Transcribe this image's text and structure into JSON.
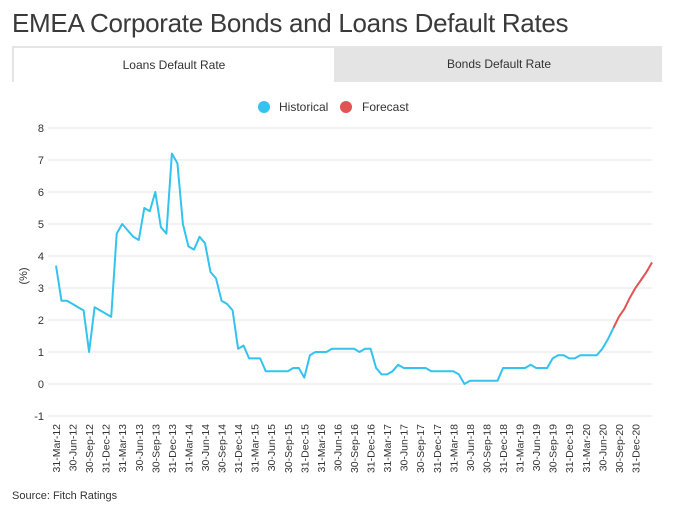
{
  "title": "EMEA Corporate Bonds and Loans Default Rates",
  "tabs": [
    {
      "label": "Loans Default Rate"
    },
    {
      "label": "Bonds Default Rate"
    }
  ],
  "source": "Source: Fitch Ratings",
  "colors": {
    "historical": "#33c3ee",
    "forecast": "#e05454",
    "grid": "#e6e6e6"
  },
  "chart_data": {
    "type": "line",
    "ylabel": "(%)",
    "ylim": [
      -1,
      8
    ],
    "yticks": [
      -1,
      0,
      1,
      2,
      3,
      4,
      5,
      6,
      7,
      8
    ],
    "grid": true,
    "legend": "top-center",
    "x_tick_labels": [
      "31-Mar-12",
      "30-Jun-12",
      "30-Sep-12",
      "31-Dec-12",
      "31-Mar-13",
      "30-Jun-13",
      "30-Sep-13",
      "31-Dec-13",
      "31-Mar-14",
      "30-Jun-14",
      "30-Sep-14",
      "31-Dec-14",
      "31-Mar-15",
      "30-Jun-15",
      "30-Sep-15",
      "31-Dec-15",
      "31-Mar-16",
      "30-Jun-16",
      "30-Sep-16",
      "31-Dec-16",
      "31-Mar-17",
      "30-Jun-17",
      "30-Sep-17",
      "31-Dec-17",
      "31-Mar-18",
      "30-Jun-18",
      "30-Sep-18",
      "31-Dec-18",
      "31-Mar-19",
      "30-Jun-19",
      "30-Sep-19",
      "31-Dec-19",
      "31-Mar-20",
      "30-Jun-20",
      "30-Sep-20",
      "31-Dec-20"
    ],
    "series": [
      {
        "name": "Historical",
        "points": [
          [
            "31-Mar-12",
            3.7
          ],
          [
            "30-Apr-12",
            2.6
          ],
          [
            "31-May-12",
            2.6
          ],
          [
            "30-Jun-12",
            2.5
          ],
          [
            "31-Jul-12",
            2.4
          ],
          [
            "31-Aug-12",
            2.3
          ],
          [
            "30-Sep-12",
            1.0
          ],
          [
            "31-Oct-12",
            2.4
          ],
          [
            "30-Nov-12",
            2.3
          ],
          [
            "31-Dec-12",
            2.2
          ],
          [
            "31-Jan-13",
            2.1
          ],
          [
            "28-Feb-13",
            4.7
          ],
          [
            "31-Mar-13",
            5.0
          ],
          [
            "30-Apr-13",
            4.8
          ],
          [
            "31-May-13",
            4.6
          ],
          [
            "30-Jun-13",
            4.5
          ],
          [
            "31-Jul-13",
            5.5
          ],
          [
            "31-Aug-13",
            5.4
          ],
          [
            "30-Sep-13",
            6.0
          ],
          [
            "31-Oct-13",
            4.9
          ],
          [
            "30-Nov-13",
            4.7
          ],
          [
            "31-Dec-13",
            7.2
          ],
          [
            "31-Jan-14",
            6.9
          ],
          [
            "28-Feb-14",
            5.0
          ],
          [
            "31-Mar-14",
            4.3
          ],
          [
            "30-Apr-14",
            4.2
          ],
          [
            "31-May-14",
            4.6
          ],
          [
            "30-Jun-14",
            4.4
          ],
          [
            "31-Jul-14",
            3.5
          ],
          [
            "31-Aug-14",
            3.3
          ],
          [
            "30-Sep-14",
            2.6
          ],
          [
            "31-Oct-14",
            2.5
          ],
          [
            "30-Nov-14",
            2.3
          ],
          [
            "31-Dec-14",
            1.1
          ],
          [
            "31-Jan-15",
            1.2
          ],
          [
            "28-Feb-15",
            0.8
          ],
          [
            "31-Mar-15",
            0.8
          ],
          [
            "30-Apr-15",
            0.8
          ],
          [
            "31-May-15",
            0.4
          ],
          [
            "30-Jun-15",
            0.4
          ],
          [
            "31-Jul-15",
            0.4
          ],
          [
            "31-Aug-15",
            0.4
          ],
          [
            "30-Sep-15",
            0.4
          ],
          [
            "31-Oct-15",
            0.5
          ],
          [
            "30-Nov-15",
            0.5
          ],
          [
            "31-Dec-15",
            0.2
          ],
          [
            "31-Jan-16",
            0.9
          ],
          [
            "29-Feb-16",
            1.0
          ],
          [
            "31-Mar-16",
            1.0
          ],
          [
            "30-Apr-16",
            1.0
          ],
          [
            "31-May-16",
            1.1
          ],
          [
            "30-Jun-16",
            1.1
          ],
          [
            "31-Jul-16",
            1.1
          ],
          [
            "31-Aug-16",
            1.1
          ],
          [
            "30-Sep-16",
            1.1
          ],
          [
            "31-Oct-16",
            1.0
          ],
          [
            "30-Nov-16",
            1.1
          ],
          [
            "31-Dec-16",
            1.1
          ],
          [
            "31-Jan-17",
            0.5
          ],
          [
            "28-Feb-17",
            0.3
          ],
          [
            "31-Mar-17",
            0.3
          ],
          [
            "30-Apr-17",
            0.4
          ],
          [
            "31-May-17",
            0.6
          ],
          [
            "30-Jun-17",
            0.5
          ],
          [
            "31-Jul-17",
            0.5
          ],
          [
            "31-Aug-17",
            0.5
          ],
          [
            "30-Sep-17",
            0.5
          ],
          [
            "31-Oct-17",
            0.5
          ],
          [
            "30-Nov-17",
            0.4
          ],
          [
            "31-Dec-17",
            0.4
          ],
          [
            "31-Jan-18",
            0.4
          ],
          [
            "28-Feb-18",
            0.4
          ],
          [
            "31-Mar-18",
            0.4
          ],
          [
            "30-Apr-18",
            0.3
          ],
          [
            "31-May-18",
            0.0
          ],
          [
            "30-Jun-18",
            0.1
          ],
          [
            "31-Jul-18",
            0.1
          ],
          [
            "31-Aug-18",
            0.1
          ],
          [
            "30-Sep-18",
            0.1
          ],
          [
            "31-Oct-18",
            0.1
          ],
          [
            "30-Nov-18",
            0.1
          ],
          [
            "31-Dec-18",
            0.5
          ],
          [
            "31-Jan-19",
            0.5
          ],
          [
            "28-Feb-19",
            0.5
          ],
          [
            "31-Mar-19",
            0.5
          ],
          [
            "30-Apr-19",
            0.5
          ],
          [
            "31-May-19",
            0.6
          ],
          [
            "30-Jun-19",
            0.5
          ],
          [
            "31-Jul-19",
            0.5
          ],
          [
            "31-Aug-19",
            0.5
          ],
          [
            "30-Sep-19",
            0.8
          ],
          [
            "31-Oct-19",
            0.9
          ],
          [
            "30-Nov-19",
            0.9
          ],
          [
            "31-Dec-19",
            0.8
          ],
          [
            "31-Jan-20",
            0.8
          ],
          [
            "29-Feb-20",
            0.9
          ],
          [
            "31-Mar-20",
            0.9
          ],
          [
            "30-Apr-20",
            0.9
          ],
          [
            "31-May-20",
            0.9
          ],
          [
            "30-Jun-20",
            1.1
          ],
          [
            "31-Jul-20",
            1.4
          ],
          [
            "31-Aug-20",
            1.75
          ]
        ]
      },
      {
        "name": "Forecast",
        "points": [
          [
            "31-Aug-20",
            1.75
          ],
          [
            "30-Sep-20",
            2.1
          ],
          [
            "31-Oct-20",
            2.35
          ],
          [
            "30-Nov-20",
            2.7
          ],
          [
            "31-Dec-20",
            3.0
          ],
          [
            "31-Jan-21",
            3.25
          ],
          [
            "28-Feb-21",
            3.5
          ],
          [
            "31-Mar-21",
            3.8
          ]
        ]
      }
    ]
  }
}
